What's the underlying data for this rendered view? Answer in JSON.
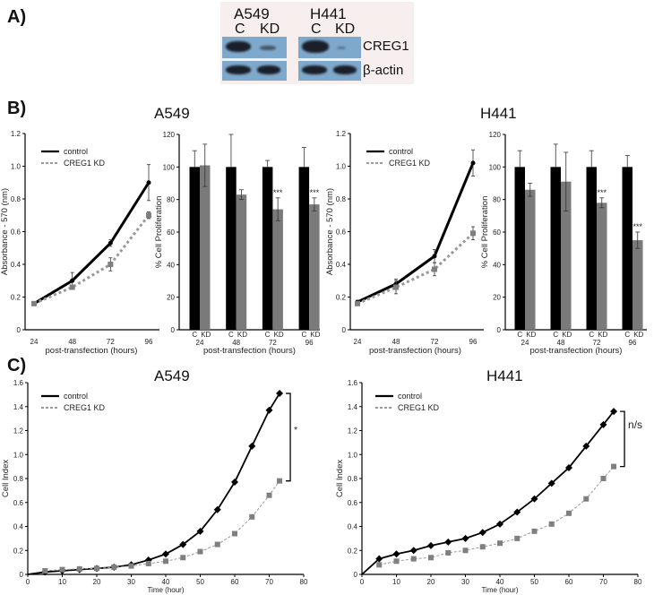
{
  "panels": {
    "a": "A)",
    "b": "B)",
    "c": "C)"
  },
  "blot": {
    "cell_lines": [
      "A549",
      "H441"
    ],
    "lanes": [
      "C",
      "KD",
      "C",
      "KD"
    ],
    "rows": [
      "CREG1",
      "β-actin"
    ],
    "band_colors": {
      "strip": "#7fa9cc",
      "band": "#1a1f2a"
    }
  },
  "titles": {
    "b_left": "A549",
    "b_right": "H441",
    "c_left": "A549",
    "c_right": "H441"
  },
  "chart_data": [
    {
      "type": "line",
      "cell_line": "A549",
      "xlabel": "post-transfection (hours)",
      "ylabel": "Absorbance - 570 (nm)",
      "x": [
        24,
        48,
        72,
        96
      ],
      "ylim": [
        0,
        1.2
      ],
      "y_ticks": [
        "0",
        "0.2",
        "0.4",
        "0.6",
        "0.8",
        "1.0",
        "1.2"
      ],
      "series": [
        {
          "name": "control",
          "values": [
            0.16,
            0.3,
            0.53,
            0.9
          ],
          "errors": [
            0.01,
            0.05,
            0.02,
            0.11
          ],
          "color": "#000000"
        },
        {
          "name": "CREG1 KD",
          "values": [
            0.16,
            0.26,
            0.4,
            0.7
          ],
          "errors": [
            0.01,
            0.01,
            0.04,
            0.02
          ],
          "color": "#808080"
        }
      ]
    },
    {
      "type": "bar",
      "cell_line": "A549",
      "xlabel": "post-transfection (hours)",
      "ylabel": "% Cell Proliferation",
      "categories": [
        "24",
        "48",
        "72",
        "96"
      ],
      "bar_labels": [
        "C",
        "KD"
      ],
      "ylim": [
        0,
        120
      ],
      "y_ticks": [
        "0",
        "20",
        "40",
        "60",
        "80",
        "100",
        "120"
      ],
      "series": [
        {
          "values": [
            100,
            100,
            100,
            100
          ],
          "errors": [
            10,
            20,
            4,
            12
          ],
          "color": "#000000"
        },
        {
          "values": [
            101,
            83,
            74,
            77
          ],
          "errors": [
            13,
            3,
            7,
            4
          ],
          "color": "#7a7a7a"
        }
      ],
      "annotations": [
        "",
        "",
        "***",
        "***"
      ]
    },
    {
      "type": "line",
      "cell_line": "H441",
      "xlabel": "post-transfection (hours)",
      "ylabel": "Absorbance - 570 (nm)",
      "x": [
        24,
        48,
        72,
        96
      ],
      "ylim": [
        0,
        1.2
      ],
      "y_ticks": [
        "0",
        "0.2",
        "0.4",
        "0.6",
        "0.8",
        "1.0",
        "1.2"
      ],
      "series": [
        {
          "name": "control",
          "values": [
            0.17,
            0.28,
            0.45,
            1.02
          ],
          "errors": [
            0.01,
            0.03,
            0.04,
            0.08
          ],
          "color": "#000000"
        },
        {
          "name": "CREG1 KD",
          "values": [
            0.16,
            0.26,
            0.37,
            0.59
          ],
          "errors": [
            0.01,
            0.04,
            0.04,
            0.04
          ],
          "color": "#808080"
        }
      ]
    },
    {
      "type": "bar",
      "cell_line": "H441",
      "xlabel": "post-transfection (hours)",
      "ylabel": "% Cell Proliferation",
      "categories": [
        "24",
        "48",
        "72",
        "96"
      ],
      "bar_labels": [
        "C",
        "KD"
      ],
      "ylim": [
        0,
        120
      ],
      "y_ticks": [
        "0",
        "20",
        "40",
        "60",
        "80",
        "100",
        "120"
      ],
      "series": [
        {
          "values": [
            100,
            100,
            100,
            100
          ],
          "errors": [
            10,
            14,
            10,
            7
          ],
          "color": "#000000"
        },
        {
          "values": [
            86,
            91,
            78,
            55
          ],
          "errors": [
            4,
            18,
            3,
            5
          ],
          "color": "#7a7a7a"
        }
      ],
      "annotations": [
        "",
        "",
        "***",
        "***"
      ]
    },
    {
      "type": "line",
      "cell_line": "A549",
      "xlabel": "Time (hour)",
      "ylabel": "Cell Index",
      "xlim": [
        0,
        80
      ],
      "x_ticks": [
        "0",
        "10",
        "20",
        "30",
        "40",
        "50",
        "60",
        "70",
        "80"
      ],
      "ylim": [
        0,
        1.6
      ],
      "y_ticks": [
        "0",
        "0.2",
        "0.4",
        "0.6",
        "0.8",
        "1.0",
        "1.2",
        "1.4",
        "1.6"
      ],
      "x": [
        5,
        10,
        15,
        20,
        25,
        30,
        35,
        40,
        45,
        50,
        55,
        60,
        65,
        70,
        73
      ],
      "series": [
        {
          "name": "control",
          "values": [
            0.02,
            0.03,
            0.04,
            0.05,
            0.06,
            0.08,
            0.12,
            0.17,
            0.25,
            0.36,
            0.54,
            0.77,
            1.07,
            1.37,
            1.51
          ],
          "color": "#000000"
        },
        {
          "name": "CREG1 KD",
          "values": [
            0.03,
            0.04,
            0.045,
            0.05,
            0.06,
            0.07,
            0.09,
            0.11,
            0.14,
            0.19,
            0.25,
            0.34,
            0.48,
            0.66,
            0.78
          ],
          "color": "#808080"
        }
      ],
      "significance": "*"
    },
    {
      "type": "line",
      "cell_line": "H441",
      "xlabel": "Time (hour)",
      "ylabel": "Cell Index",
      "xlim": [
        0,
        80
      ],
      "x_ticks": [
        "0",
        "10",
        "20",
        "30",
        "40",
        "50",
        "60",
        "70",
        "80"
      ],
      "ylim": [
        0,
        1.6
      ],
      "y_ticks": [
        "0",
        "0.2",
        "0.4",
        "0.6",
        "0.8",
        "1.0",
        "1.2",
        "1.4",
        "1.6"
      ],
      "x": [
        5,
        10,
        15,
        20,
        25,
        30,
        35,
        40,
        45,
        50,
        55,
        60,
        65,
        70,
        73
      ],
      "series": [
        {
          "name": "control",
          "values": [
            0.13,
            0.17,
            0.2,
            0.24,
            0.27,
            0.3,
            0.35,
            0.42,
            0.52,
            0.63,
            0.76,
            0.89,
            1.07,
            1.25,
            1.36
          ],
          "color": "#000000"
        },
        {
          "name": "CREG1 KD",
          "values": [
            0.08,
            0.11,
            0.13,
            0.14,
            0.18,
            0.2,
            0.23,
            0.26,
            0.3,
            0.36,
            0.42,
            0.51,
            0.63,
            0.8,
            0.9
          ],
          "color": "#808080"
        }
      ],
      "significance": "n/s"
    }
  ]
}
